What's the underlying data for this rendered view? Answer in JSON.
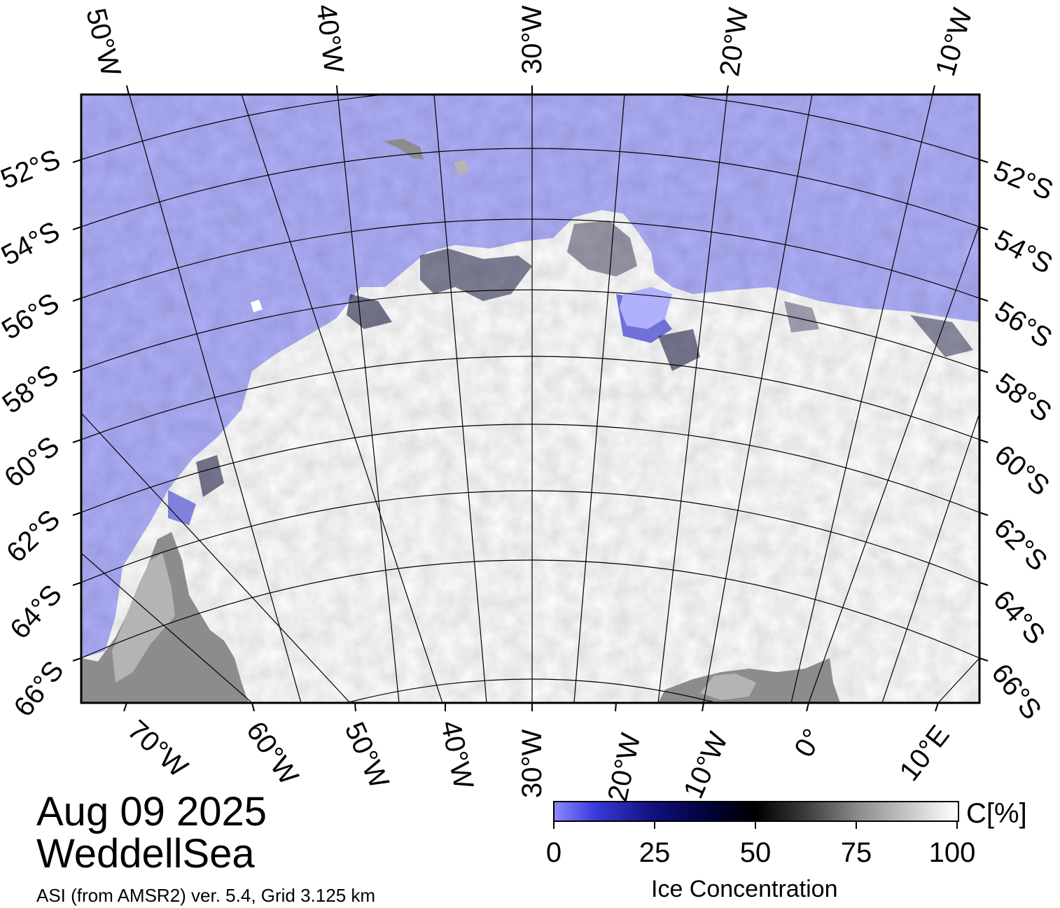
{
  "header": {
    "date": "Aug 09 2025",
    "region": "WeddellSea",
    "product": "ASI (from AMSR2) ver. 5.4,  Grid 3.125 km"
  },
  "map": {
    "top_longitudes": [
      "50°W",
      "40°W",
      "30°W",
      "20°W",
      "10°W"
    ],
    "bottom_longitudes": [
      "70°W",
      "60°W",
      "50°W",
      "40°W",
      "30°W",
      "20°W",
      "10°W",
      "0°",
      "10°E"
    ],
    "left_latitudes": [
      "52°S",
      "54°S",
      "56°S",
      "58°S",
      "60°S",
      "62°S",
      "64°S",
      "66°S"
    ],
    "right_latitudes": [
      "52°S",
      "54°S",
      "56°S",
      "58°S",
      "60°S",
      "62°S",
      "64°S",
      "66°S"
    ],
    "colors": {
      "ocean": "#b0b0fc",
      "ice_high": "#ffffff",
      "ice_mid": "#d8d8d8",
      "ice_low": "#101040",
      "land": "#8c8c8c",
      "ice_shelf": "#b4b4b4",
      "grid": "#000000"
    }
  },
  "colorbar": {
    "unit": "C[%]",
    "ticks": [
      "0",
      "25",
      "50",
      "75",
      "100"
    ],
    "label": "Ice Concentration"
  }
}
